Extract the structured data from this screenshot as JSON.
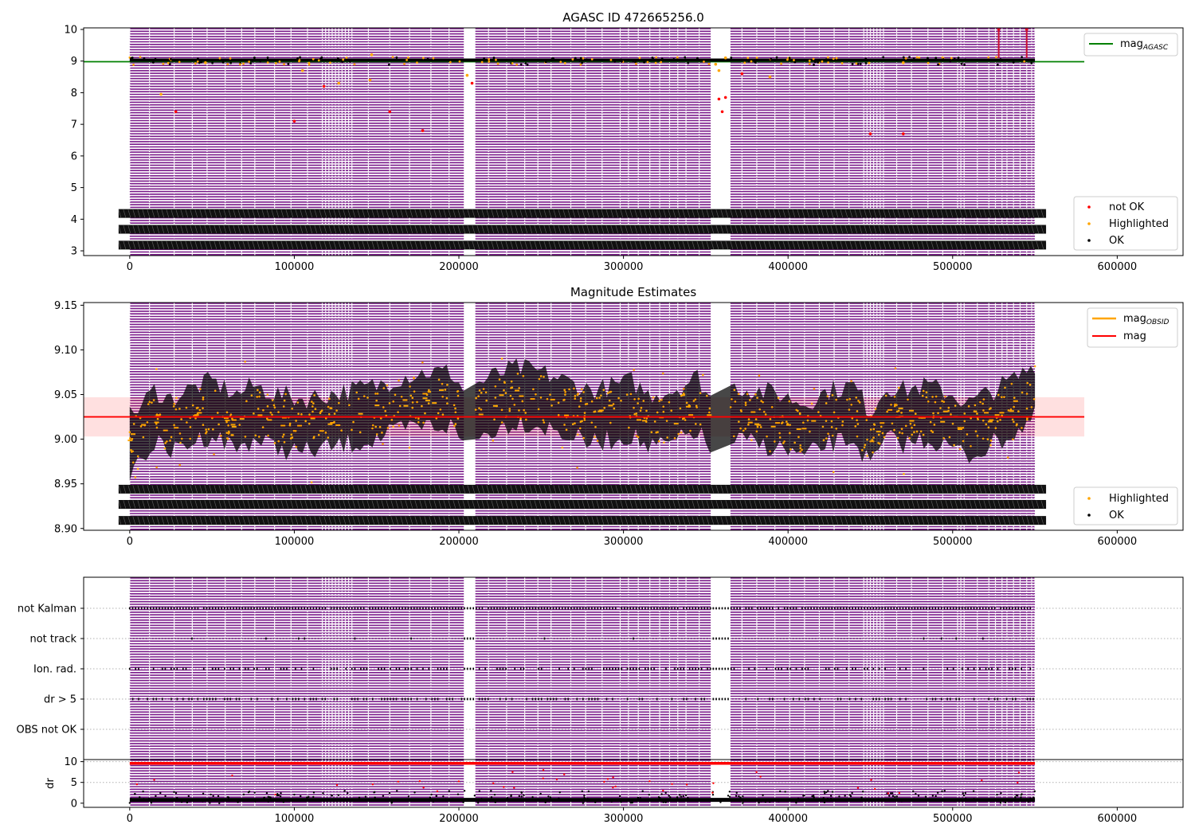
{
  "chart_data": [
    {
      "id": "top",
      "type": "scatter",
      "title": "AGASC ID 472665256.0",
      "xlabel": "",
      "ylabel": "",
      "xlim": [
        -28000,
        640000
      ],
      "ylim": [
        2.85,
        10.05
      ],
      "x_ticks": [
        0,
        100000,
        200000,
        300000,
        400000,
        500000,
        600000
      ],
      "x_tick_labels": [
        "0",
        "100000",
        "200000",
        "300000",
        "400000",
        "500000",
        "600000"
      ],
      "y_ticks": [
        3,
        4,
        5,
        6,
        7,
        8,
        9,
        10
      ],
      "y_tick_labels": [
        "3",
        "4",
        "5",
        "6",
        "7",
        "8",
        "9",
        "10"
      ],
      "reference_lines": [
        {
          "name": "mag_AGASC",
          "y": 8.98,
          "x_range": [
            -28000,
            580000
          ],
          "color": "#008000"
        }
      ],
      "baseline": 9.03,
      "outliers_red": [
        [
          28000,
          7.4
        ],
        [
          100000,
          7.1
        ],
        [
          118000,
          8.2
        ],
        [
          158000,
          7.4
        ],
        [
          178000,
          6.8
        ],
        [
          208000,
          8.3
        ],
        [
          358000,
          7.8
        ],
        [
          360000,
          7.4
        ],
        [
          362000,
          7.85
        ],
        [
          372000,
          8.6
        ],
        [
          450000,
          6.7
        ],
        [
          470000,
          6.7
        ],
        [
          528000,
          10.0
        ],
        [
          545000,
          10.0
        ]
      ],
      "outliers_orange": [
        [
          19000,
          7.95
        ],
        [
          46000,
          8.95
        ],
        [
          105000,
          8.7
        ],
        [
          127000,
          8.3
        ],
        [
          146000,
          8.4
        ],
        [
          147000,
          9.2
        ],
        [
          205000,
          8.55
        ],
        [
          356000,
          8.9
        ],
        [
          358000,
          8.7
        ],
        [
          362000,
          9.1
        ],
        [
          389000,
          8.5
        ],
        [
          470000,
          8.95
        ]
      ],
      "legend": {
        "position": "top-right",
        "entries": [
          {
            "label_main": "mag",
            "label_sub": "AGASC",
            "color": "#008000"
          }
        ]
      },
      "legend2": {
        "position": "lower-right",
        "entries": [
          {
            "label": "not OK",
            "color": "#ff0000"
          },
          {
            "label": "Highlighted",
            "color": "#ffa500"
          },
          {
            "label": "OK",
            "color": "#000000"
          }
        ]
      },
      "obsid_label_rows": [
        4.18,
        3.68,
        3.18
      ]
    },
    {
      "id": "mid",
      "type": "scatter",
      "title": "Magnitude Estimates",
      "xlabel": "",
      "ylabel": "",
      "xlim": [
        -28000,
        640000
      ],
      "ylim": [
        8.898,
        9.153
      ],
      "x_ticks": [
        0,
        100000,
        200000,
        300000,
        400000,
        500000,
        600000
      ],
      "x_tick_labels": [
        "0",
        "100000",
        "200000",
        "300000",
        "400000",
        "500000",
        "600000"
      ],
      "y_ticks": [
        8.9,
        8.95,
        9.0,
        9.05,
        9.1,
        9.15
      ],
      "y_tick_labels": [
        "8.90",
        "8.95",
        "9.00",
        "9.05",
        "9.10",
        "9.15"
      ],
      "reference_lines": [
        {
          "name": "mag",
          "y": 9.025,
          "x_range": [
            -28000,
            580000
          ],
          "color": "#ff0000"
        }
      ],
      "mag_band": [
        9.003,
        9.047
      ],
      "band_profile_x": [
        0,
        8000,
        15000,
        25000,
        35000,
        50000,
        65000,
        75000,
        90000,
        105000,
        120000,
        135000,
        150000,
        165000,
        180000,
        195000,
        203000,
        210000,
        220000,
        235000,
        250000,
        265000,
        280000,
        295000,
        305000,
        315000,
        330000,
        345000,
        353000,
        365000,
        380000,
        395000,
        410000,
        425000,
        440000,
        450000,
        460000,
        470000,
        485000,
        500000,
        510000,
        520000,
        530000,
        540000,
        550000
      ],
      "band_profile_y": [
        8.995,
        9.01,
        9.025,
        9.015,
        9.025,
        9.035,
        9.02,
        9.03,
        9.02,
        9.015,
        9.02,
        9.025,
        9.03,
        9.04,
        9.045,
        9.045,
        9.025,
        9.03,
        9.04,
        9.05,
        9.045,
        9.035,
        9.025,
        9.03,
        9.035,
        9.02,
        9.025,
        9.04,
        9.015,
        9.03,
        9.025,
        9.02,
        9.01,
        9.025,
        9.03,
        9.0,
        9.03,
        9.025,
        9.03,
        9.02,
        9.01,
        9.02,
        9.03,
        9.04,
        9.055
      ],
      "band_halfwidth": 0.03,
      "obsid_label_rows": [
        8.944,
        8.927,
        8.909
      ],
      "legend": {
        "position": "top-right",
        "entries": [
          {
            "label_main": "mag",
            "label_sub": "OBSID",
            "color": "#ffa500"
          },
          {
            "label_main": "mag",
            "label_sub": "",
            "color": "#ff0000"
          }
        ]
      },
      "legend2": {
        "position": "lower-right",
        "entries": [
          {
            "label": "Highlighted",
            "color": "#ffa500"
          },
          {
            "label": "OK",
            "color": "#000000"
          }
        ]
      }
    },
    {
      "id": "flags",
      "type": "scatter",
      "title": "",
      "xlim": [
        -28000,
        640000
      ],
      "y_categories": [
        "not Kalman",
        "not track",
        "Ion. rad.",
        "dr > 5",
        "OBS not OK"
      ]
    },
    {
      "id": "dr",
      "type": "scatter",
      "title": "",
      "xlabel": "",
      "ylabel": "dr",
      "xlim": [
        -28000,
        640000
      ],
      "ylim": [
        -1,
        10.5
      ],
      "x_ticks": [
        0,
        100000,
        200000,
        300000,
        400000,
        500000,
        600000
      ],
      "x_tick_labels": [
        "0",
        "100000",
        "200000",
        "300000",
        "400000",
        "500000",
        "600000"
      ],
      "y_ticks": [
        0,
        5,
        10
      ],
      "y_tick_labels": [
        "0",
        "5",
        "10"
      ]
    }
  ],
  "shared": {
    "time_span": [
      0,
      550000
    ],
    "gaps": [
      [
        203000,
        210000
      ],
      [
        353000,
        365000
      ]
    ],
    "observation_separators": [
      12000,
      27000,
      38000,
      47000,
      58000,
      68000,
      76000,
      88000,
      98000,
      108000,
      117000,
      119000,
      121000,
      123000,
      125000,
      127000,
      129000,
      131000,
      133000,
      135000,
      145000,
      158000,
      170000,
      183000,
      194000,
      218000,
      229000,
      240000,
      248000,
      256000,
      268000,
      277000,
      287000,
      298000,
      303000,
      309000,
      316000,
      322000,
      328000,
      333000,
      338000,
      346000,
      372000,
      381000,
      392000,
      401000,
      410000,
      419000,
      428000,
      437000,
      446000,
      448000,
      450000,
      452000,
      454000,
      456000,
      458000,
      466000,
      475000,
      485000,
      494000,
      503000,
      505000,
      507000,
      515000,
      522000,
      526000,
      530000,
      533000,
      537000,
      541000,
      545000,
      548000
    ]
  }
}
